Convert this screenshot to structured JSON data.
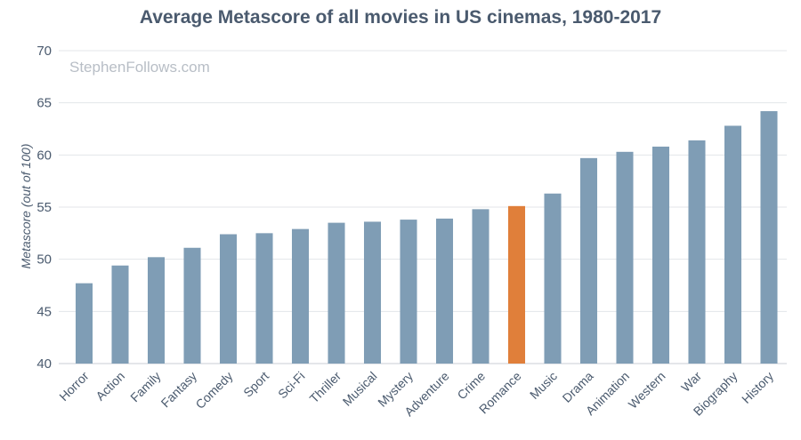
{
  "watermark": "StephenFollows.com",
  "colors": {
    "bar": "#7f9db5",
    "highlight": "#e07f3a",
    "text": "#4a5a6e",
    "grid": "#e3e6ea"
  },
  "chart_data": {
    "type": "bar",
    "title": "Average Metascore of all movies in US cinemas, 1980-2017",
    "xlabel": "",
    "ylabel": "Metascore (out of 100)",
    "ylim": [
      40,
      70
    ],
    "yticks": [
      40,
      45,
      50,
      55,
      60,
      65,
      70
    ],
    "grid": true,
    "highlight": "Romance",
    "categories": [
      "Horror",
      "Action",
      "Family",
      "Fantasy",
      "Comedy",
      "Sport",
      "Sci-Fi",
      "Thriller",
      "Musical",
      "Mystery",
      "Adventure",
      "Crime",
      "Romance",
      "Music",
      "Drama",
      "Animation",
      "Western",
      "War",
      "Biography",
      "History"
    ],
    "values": [
      47.7,
      49.4,
      50.2,
      51.1,
      52.4,
      52.5,
      52.9,
      53.5,
      53.6,
      53.8,
      53.9,
      54.8,
      55.1,
      56.3,
      59.7,
      60.3,
      60.8,
      61.4,
      62.8,
      64.2
    ]
  }
}
